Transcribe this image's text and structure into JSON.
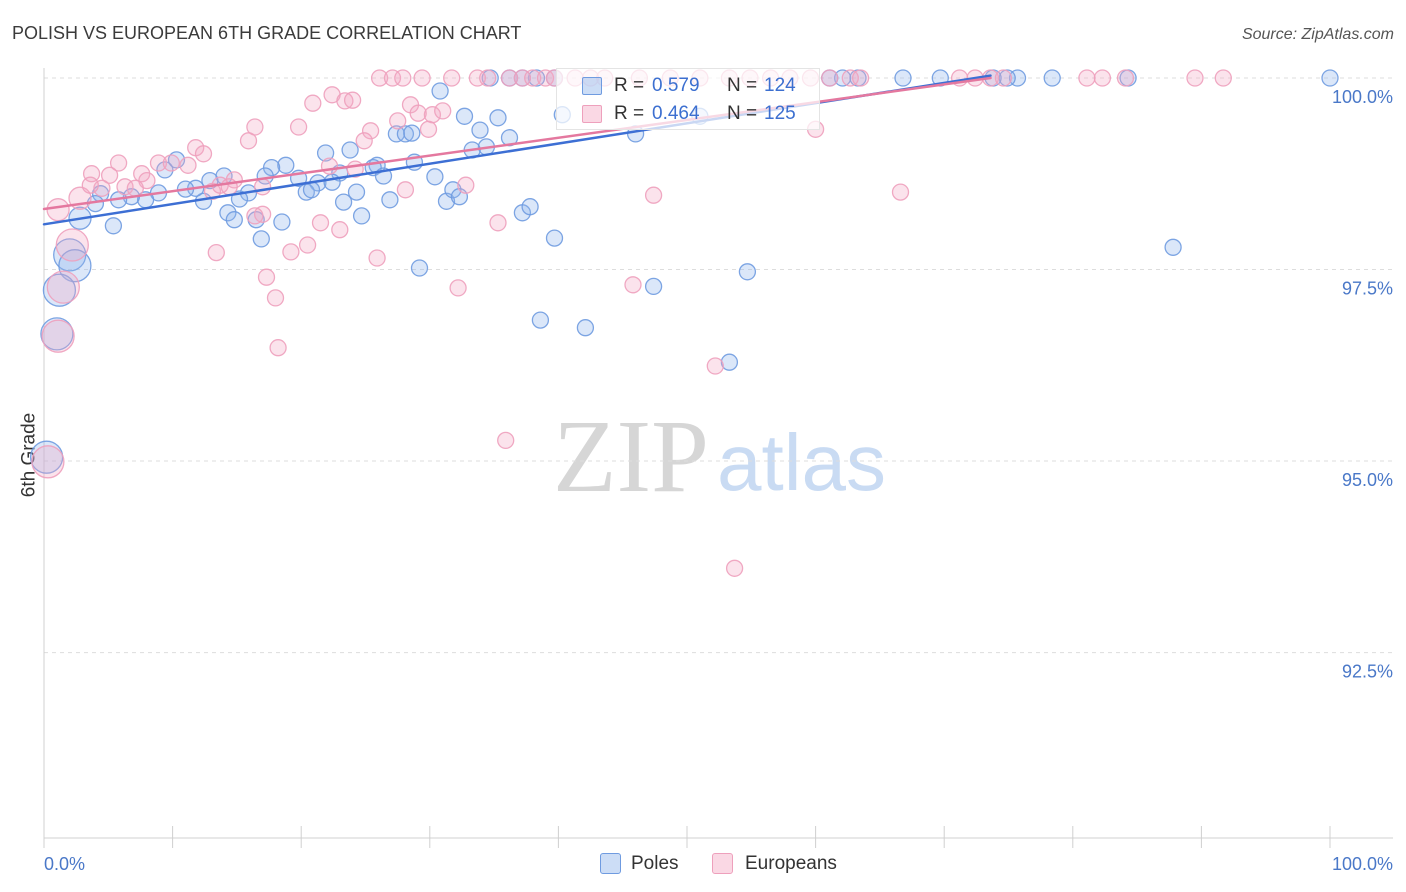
{
  "chart_data": {
    "type": "scatter",
    "title": "POLISH VS EUROPEAN 6TH GRADE CORRELATION CHART",
    "source": "Source: ZipAtlas.com",
    "xlabel": "",
    "ylabel": "6th Grade",
    "xlim": [
      0,
      100
    ],
    "ylim": [
      90.08,
      100.13
    ],
    "x_ticks": [
      0,
      10,
      20,
      30,
      40,
      50,
      60,
      70,
      80,
      90,
      100
    ],
    "x_tick_labels": [
      "0.0%",
      "100.0%"
    ],
    "y_ticks": [
      100,
      97.5,
      95,
      92.5
    ],
    "y_tick_labels": [
      "100.0%",
      "97.5%",
      "95.0%",
      "92.5%"
    ],
    "grid": true,
    "legend_position": "bottom",
    "stat_labels": {
      "r": "R =",
      "n": "N ="
    },
    "series": [
      {
        "name": "Poles",
        "r": "0.579",
        "n": "124",
        "fill": "#8fb3ec",
        "stroke": "#6f9be0",
        "line_color": "#3d6fd4",
        "trend": {
          "x": [
            0,
            73.6
          ],
          "y": [
            98.09,
            100.03
          ]
        },
        "points": [
          [
            100.0,
            100.0,
            1
          ],
          [
            84.3,
            100.0,
            1
          ],
          [
            78.4,
            100.0,
            1
          ],
          [
            75.7,
            100.0,
            1
          ],
          [
            74.9,
            100.0,
            1
          ],
          [
            73.8,
            100.0,
            1
          ],
          [
            69.7,
            100.0,
            1
          ],
          [
            66.8,
            100.0,
            1
          ],
          [
            63.3,
            100.0,
            1
          ],
          [
            62.1,
            100.0,
            1
          ],
          [
            61.1,
            100.0,
            1
          ],
          [
            39.7,
            100.0,
            1
          ],
          [
            38.3,
            100.0,
            1
          ],
          [
            37.2,
            100.0,
            1
          ],
          [
            36.2,
            100.0,
            1
          ],
          [
            34.7,
            100.0,
            1
          ],
          [
            30.8,
            99.83,
            1
          ],
          [
            32.7,
            99.5,
            1
          ],
          [
            35.3,
            99.48,
            1
          ],
          [
            33.9,
            99.32,
            1
          ],
          [
            36.2,
            99.22,
            1
          ],
          [
            34.4,
            99.1,
            1
          ],
          [
            27.4,
            99.27,
            1
          ],
          [
            28.1,
            99.27,
            1
          ],
          [
            28.6,
            99.28,
            1
          ],
          [
            23.8,
            99.06,
            1
          ],
          [
            21.9,
            99.02,
            1
          ],
          [
            18.8,
            98.86,
            1
          ],
          [
            17.7,
            98.83,
            1
          ],
          [
            25.9,
            98.86,
            1
          ],
          [
            25.6,
            98.83,
            1
          ],
          [
            28.8,
            98.9,
            1
          ],
          [
            30.4,
            98.71,
            1
          ],
          [
            26.4,
            98.72,
            1
          ],
          [
            23.0,
            98.76,
            1
          ],
          [
            19.8,
            98.69,
            1
          ],
          [
            21.3,
            98.63,
            1
          ],
          [
            22.4,
            98.64,
            1
          ],
          [
            17.2,
            98.72,
            1
          ],
          [
            14.0,
            98.72,
            1
          ],
          [
            12.9,
            98.66,
            1
          ],
          [
            15.9,
            98.5,
            1
          ],
          [
            15.2,
            98.42,
            1
          ],
          [
            12.4,
            98.39,
            1
          ],
          [
            11.8,
            98.56,
            1
          ],
          [
            11.0,
            98.55,
            1
          ],
          [
            10.3,
            98.93,
            1
          ],
          [
            9.4,
            98.8,
            1
          ],
          [
            8.9,
            98.5,
            1
          ],
          [
            7.9,
            98.41,
            1
          ],
          [
            6.8,
            98.45,
            1
          ],
          [
            5.8,
            98.41,
            1
          ],
          [
            4.4,
            98.49,
            1
          ],
          [
            4.0,
            98.36,
            1
          ],
          [
            2.8,
            98.17,
            2
          ],
          [
            5.4,
            98.07,
            1
          ],
          [
            14.3,
            98.24,
            1
          ],
          [
            14.8,
            98.15,
            1
          ],
          [
            16.5,
            98.15,
            1
          ],
          [
            18.5,
            98.12,
            1
          ],
          [
            16.9,
            97.9,
            1
          ],
          [
            20.4,
            98.51,
            1
          ],
          [
            20.8,
            98.54,
            1
          ],
          [
            23.3,
            98.38,
            1
          ],
          [
            24.3,
            98.51,
            1
          ],
          [
            24.7,
            98.2,
            1
          ],
          [
            26.9,
            98.41,
            1
          ],
          [
            31.3,
            98.39,
            1
          ],
          [
            31.8,
            98.54,
            1
          ],
          [
            32.3,
            98.45,
            1
          ],
          [
            33.3,
            99.06,
            1
          ],
          [
            37.2,
            98.24,
            1
          ],
          [
            37.8,
            98.32,
            1
          ],
          [
            39.7,
            97.91,
            1
          ],
          [
            29.2,
            97.52,
            1
          ],
          [
            38.6,
            96.84,
            1
          ],
          [
            42.1,
            96.74,
            1
          ],
          [
            47.4,
            97.28,
            1
          ],
          [
            54.7,
            97.47,
            1
          ],
          [
            53.3,
            96.29,
            1
          ],
          [
            87.8,
            97.79,
            1
          ],
          [
            46.0,
            99.27,
            1
          ],
          [
            40.3,
            99.52,
            1
          ],
          [
            51.0,
            99.5,
            1
          ],
          [
            2.0,
            97.69,
            3
          ],
          [
            2.4,
            97.55,
            3
          ],
          [
            1.2,
            97.23,
            3
          ],
          [
            1.0,
            96.66,
            3
          ],
          [
            0.2,
            95.05,
            3
          ]
        ]
      },
      {
        "name": "Europeans",
        "r": "0.464",
        "n": "125",
        "fill": "#f4a9c4",
        "stroke": "#eea0bc",
        "line_color": "#e4789f",
        "trend": {
          "x": [
            0,
            73.6
          ],
          "y": [
            98.29,
            100.0
          ]
        },
        "points": [
          [
            26.1,
            100.0,
            1
          ],
          [
            27.1,
            100.0,
            1
          ],
          [
            27.9,
            100.0,
            1
          ],
          [
            29.4,
            100.0,
            1
          ],
          [
            31.7,
            100.0,
            1
          ],
          [
            33.7,
            100.0,
            1
          ],
          [
            34.5,
            100.0,
            1
          ],
          [
            36.2,
            100.0,
            1
          ],
          [
            37.2,
            100.0,
            1
          ],
          [
            38.0,
            100.0,
            1
          ],
          [
            39.0,
            100.0,
            1
          ],
          [
            39.7,
            100.0,
            1
          ],
          [
            41.3,
            100.0,
            1
          ],
          [
            42.5,
            100.0,
            1
          ],
          [
            43.6,
            100.0,
            1
          ],
          [
            46.3,
            100.0,
            1
          ],
          [
            48.7,
            100.0,
            1
          ],
          [
            51.0,
            100.0,
            1
          ],
          [
            53.3,
            100.0,
            1
          ],
          [
            54.9,
            100.0,
            1
          ],
          [
            56.5,
            100.0,
            1
          ],
          [
            58.0,
            100.0,
            1
          ],
          [
            59.6,
            100.0,
            1
          ],
          [
            61.1,
            100.0,
            1
          ],
          [
            62.7,
            100.0,
            1
          ],
          [
            63.5,
            100.0,
            1
          ],
          [
            71.2,
            100.0,
            1
          ],
          [
            72.4,
            100.0,
            1
          ],
          [
            73.6,
            100.0,
            1
          ],
          [
            74.6,
            100.0,
            1
          ],
          [
            81.1,
            100.0,
            1
          ],
          [
            82.3,
            100.0,
            1
          ],
          [
            84.1,
            100.0,
            1
          ],
          [
            89.5,
            100.0,
            1
          ],
          [
            91.7,
            100.0,
            1
          ],
          [
            20.9,
            99.67,
            1
          ],
          [
            22.4,
            99.78,
            1
          ],
          [
            23.4,
            99.7,
            1
          ],
          [
            24.0,
            99.71,
            1
          ],
          [
            28.5,
            99.65,
            1
          ],
          [
            29.1,
            99.54,
            1
          ],
          [
            30.2,
            99.52,
            1
          ],
          [
            31.0,
            99.57,
            1
          ],
          [
            16.4,
            99.36,
            1
          ],
          [
            19.8,
            99.36,
            1
          ],
          [
            15.9,
            99.18,
            1
          ],
          [
            25.4,
            99.31,
            1
          ],
          [
            27.5,
            99.44,
            1
          ],
          [
            29.9,
            99.33,
            1
          ],
          [
            24.9,
            99.18,
            1
          ],
          [
            11.8,
            99.09,
            1
          ],
          [
            12.4,
            99.01,
            1
          ],
          [
            8.9,
            98.89,
            1
          ],
          [
            9.9,
            98.89,
            1
          ],
          [
            11.2,
            98.86,
            1
          ],
          [
            5.8,
            98.89,
            1
          ],
          [
            5.1,
            98.73,
            1
          ],
          [
            3.7,
            98.75,
            1
          ],
          [
            7.6,
            98.75,
            1
          ],
          [
            8.0,
            98.66,
            1
          ],
          [
            14.8,
            98.67,
            1
          ],
          [
            13.1,
            98.52,
            1
          ],
          [
            13.7,
            98.6,
            1
          ],
          [
            14.4,
            98.58,
            1
          ],
          [
            17.0,
            98.58,
            1
          ],
          [
            4.5,
            98.56,
            1
          ],
          [
            6.3,
            98.58,
            1
          ],
          [
            7.1,
            98.56,
            1
          ],
          [
            22.2,
            98.85,
            1
          ],
          [
            24.2,
            98.81,
            1
          ],
          [
            28.1,
            98.54,
            1
          ],
          [
            32.8,
            98.6,
            1
          ],
          [
            35.3,
            98.11,
            1
          ],
          [
            17.0,
            98.22,
            1
          ],
          [
            16.4,
            98.2,
            1
          ],
          [
            21.5,
            98.11,
            1
          ],
          [
            23.0,
            98.02,
            1
          ],
          [
            19.2,
            97.73,
            1
          ],
          [
            20.5,
            97.82,
            1
          ],
          [
            25.9,
            97.65,
            1
          ],
          [
            13.4,
            97.72,
            1
          ],
          [
            17.3,
            97.4,
            1
          ],
          [
            18.0,
            97.13,
            1
          ],
          [
            18.2,
            96.48,
            1
          ],
          [
            32.2,
            97.26,
            1
          ],
          [
            45.8,
            97.3,
            1
          ],
          [
            47.4,
            98.47,
            1
          ],
          [
            60.0,
            99.33,
            1
          ],
          [
            66.6,
            98.51,
            1
          ],
          [
            52.2,
            96.24,
            1
          ],
          [
            35.9,
            95.27,
            1
          ],
          [
            53.7,
            93.6,
            1
          ],
          [
            2.8,
            98.43,
            2
          ],
          [
            3.6,
            98.6,
            1
          ],
          [
            1.1,
            98.28,
            2
          ],
          [
            2.2,
            97.82,
            3
          ],
          [
            1.5,
            97.27,
            3
          ],
          [
            1.1,
            96.63,
            3
          ],
          [
            0.3,
            94.99,
            3
          ]
        ]
      }
    ]
  },
  "watermark": {
    "zip": "ZIP",
    "atlas": "atlas"
  },
  "colors": {
    "tick_label": "#4a78c8",
    "stat_value": "#3c6fd0",
    "text": "#333333",
    "grid": "#dddddd"
  }
}
